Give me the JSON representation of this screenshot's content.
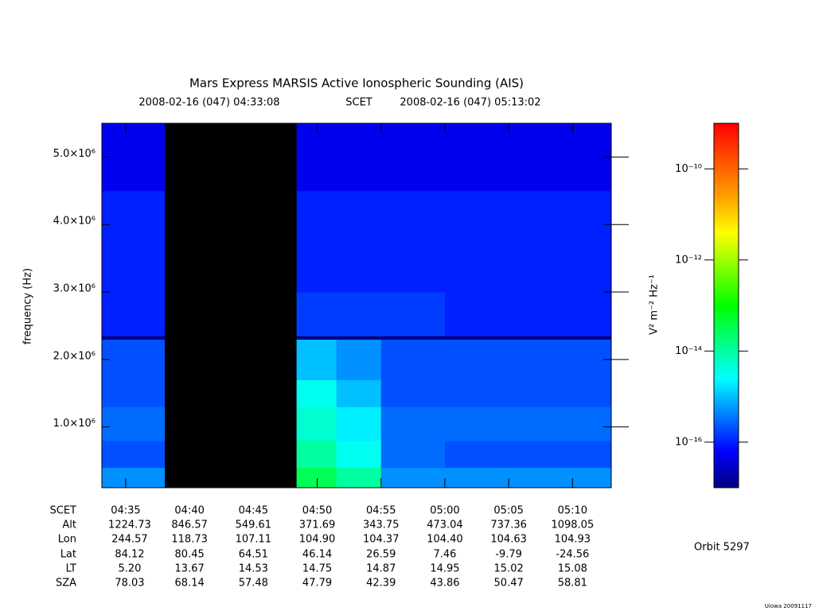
{
  "chart_data": {
    "type": "spectrogram",
    "title": "Mars Express MARSIS Active Ionospheric Sounding (AIS)",
    "start_label": "2008-02-16 (047) 04:33:08",
    "time_system": "SCET",
    "end_label": "2008-02-16 (047) 05:13:02",
    "y_label": "frequency (Hz)",
    "xlim": [
      "04:33:08",
      "05:13:02"
    ],
    "xticks": [
      "04:35",
      "04:40",
      "04:45",
      "04:50",
      "04:55",
      "05:00",
      "05:05",
      "05:10"
    ],
    "ylim": [
      100000,
      5500000
    ],
    "yticks": [
      {
        "value": 1000000,
        "label": "1.0×10⁶"
      },
      {
        "value": 2000000,
        "label": "2.0×10⁶"
      },
      {
        "value": 3000000,
        "label": "3.0×10⁶"
      },
      {
        "value": 4000000,
        "label": "4.0×10⁶"
      },
      {
        "value": 5000000,
        "label": "5.0×10⁶"
      }
    ],
    "time_edges": [
      "04:33:08",
      "04:38:04",
      "04:48:23",
      "04:51:30",
      "04:55:00",
      "05:00:00",
      "05:13:02"
    ],
    "freq_edges": [
      100000,
      400000,
      800000,
      1300000,
      1700000,
      2300000,
      2350000,
      3000000,
      4500000,
      5500000
    ],
    "z": [
      [
        5e-16,
        null,
        3e-14,
        1e-14,
        5e-16,
        5e-16
      ],
      [
        2e-16,
        null,
        1e-14,
        3e-15,
        3e-16,
        2e-16
      ],
      [
        3e-16,
        null,
        5e-15,
        2e-15,
        3e-16,
        3e-16
      ],
      [
        2e-16,
        null,
        3e-15,
        1e-15,
        2e-16,
        2e-16
      ],
      [
        2e-16,
        null,
        1e-15,
        5e-16,
        2e-16,
        2e-16
      ],
      [
        1e-17,
        null,
        1e-17,
        1e-17,
        1e-17,
        1e-17
      ],
      [
        1e-16,
        null,
        1.5e-16,
        1.5e-16,
        1.5e-16,
        1e-16
      ],
      [
        1e-16,
        null,
        1e-16,
        1e-16,
        1e-16,
        1e-16
      ],
      [
        5e-17,
        null,
        5e-17,
        5e-17,
        5e-17,
        5e-17
      ]
    ],
    "null_color": "#000000",
    "z_log": true,
    "zlim": [
      1e-17,
      1e-09
    ],
    "zticks": [
      {
        "value": 1e-16,
        "label": "10⁻¹⁶"
      },
      {
        "value": 1e-14,
        "label": "10⁻¹⁴"
      },
      {
        "value": 1e-12,
        "label": "10⁻¹²"
      },
      {
        "value": 1e-10,
        "label": "10⁻¹⁰"
      }
    ],
    "z_label": "V² m⁻² Hz⁻¹",
    "colormap": [
      "#00007f",
      "#0000ff",
      "#0080ff",
      "#00ffff",
      "#00ff80",
      "#00ff00",
      "#80ff00",
      "#ffff00",
      "#ffa000",
      "#ff5000",
      "#ff0000"
    ],
    "ephemeris": {
      "time_row_label": "SCET",
      "rows": [
        {
          "label": "Alt",
          "values": [
            "1224.73",
            "846.57",
            "549.61",
            "371.69",
            "343.75",
            "473.04",
            "737.36",
            "1098.05"
          ]
        },
        {
          "label": "Lon",
          "values": [
            "244.57",
            "118.73",
            "107.11",
            "104.90",
            "104.37",
            "104.40",
            "104.63",
            "104.93"
          ]
        },
        {
          "label": "Lat",
          "values": [
            "84.12",
            "80.45",
            "64.51",
            "46.14",
            "26.59",
            "7.46",
            "-9.79",
            "-24.56"
          ]
        },
        {
          "label": "LT",
          "values": [
            "5.20",
            "13.67",
            "14.53",
            "14.75",
            "14.87",
            "14.95",
            "15.02",
            "15.08"
          ]
        },
        {
          "label": "SZA",
          "values": [
            "78.03",
            "68.14",
            "57.48",
            "47.79",
            "42.39",
            "43.86",
            "50.47",
            "58.81"
          ]
        }
      ]
    },
    "orbit": "Orbit 5297",
    "credit": "Uiowa 20091117"
  }
}
